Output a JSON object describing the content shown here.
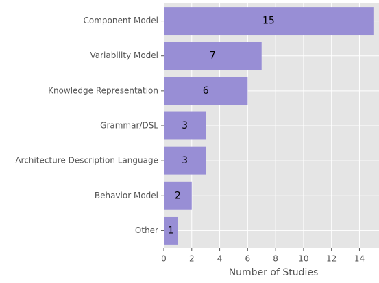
{
  "chart_data": {
    "type": "barh",
    "categories": [
      "Component Model",
      "Variability Model",
      "Knowledge Representation",
      "Grammar/DSL",
      "Architecture Description Language",
      "Behavior Model",
      "Other"
    ],
    "values": [
      15,
      7,
      6,
      3,
      3,
      2,
      1
    ],
    "color": "#988ED5",
    "xlabel": "Number of Studies",
    "xlim": [
      0,
      15.4
    ],
    "xticks": [
      0,
      2,
      4,
      6,
      8,
      10,
      12,
      14
    ],
    "grid": true
  }
}
